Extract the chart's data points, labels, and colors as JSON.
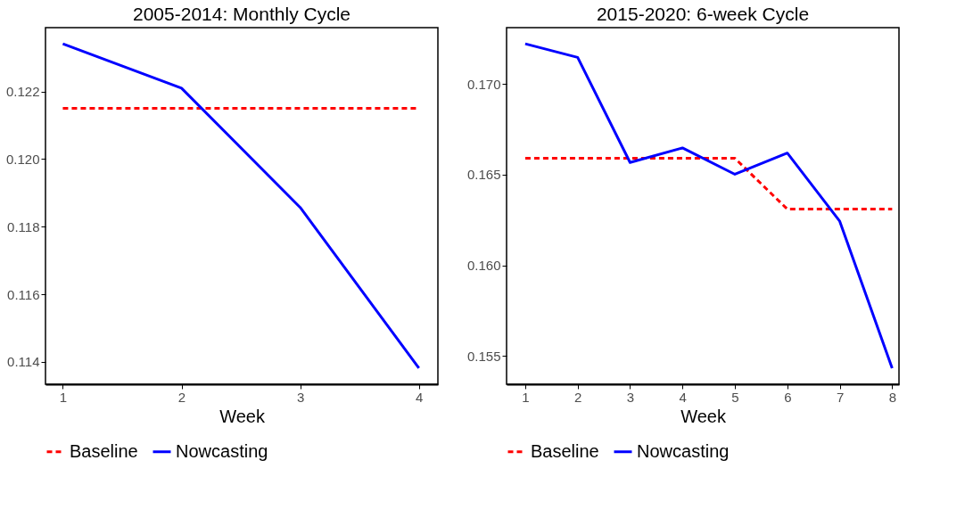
{
  "chart_data": [
    {
      "type": "line",
      "title": "2005-2014: Monthly Cycle",
      "xlabel": "Week",
      "x": [
        1,
        2,
        3,
        4
      ],
      "xlim": [
        0.854,
        4.16
      ],
      "xticks": [
        1,
        2,
        3,
        4
      ],
      "ylim": [
        0.11334,
        0.12389
      ],
      "yticks": [
        0.114,
        0.116,
        0.118,
        {
          "value": 0.12,
          "label": "0.120"
        },
        0.122
      ],
      "grid": false,
      "legend": "bottom",
      "marker": "none",
      "series": [
        {
          "name": "Baseline",
          "color": "#ff0000",
          "line_style": "dashed",
          "values": [
            0.1215,
            0.1215,
            0.1215,
            0.1215
          ]
        },
        {
          "name": "Nowcasting",
          "color": "#0000ff",
          "line_style": "solid",
          "values": [
            0.12341,
            0.1221,
            0.11857,
            0.11382
          ]
        }
      ]
    },
    {
      "type": "line",
      "title": "2015-2020: 6-week Cycle",
      "xlabel": "Week",
      "x": [
        1,
        2,
        3,
        4,
        5,
        6,
        7,
        8
      ],
      "xlim": [
        0.644,
        8.13
      ],
      "xticks": [
        1,
        2,
        3,
        4,
        5,
        6,
        7,
        8
      ],
      "ylim": [
        0.15345,
        0.1731
      ],
      "yticks": [
        0.155,
        {
          "value": 0.16,
          "label": "0.160"
        },
        0.165,
        {
          "value": 0.17,
          "label": "0.170"
        }
      ],
      "grid": false,
      "legend": "bottom",
      "marker": "none",
      "series": [
        {
          "name": "Baseline",
          "color": "#ff0000",
          "line_style": "dashed",
          "values": [
            0.1659,
            0.1659,
            0.1659,
            0.1659,
            0.1659,
            0.1631,
            0.1631,
            0.1631
          ]
        },
        {
          "name": "Nowcasting",
          "color": "#0000ff",
          "line_style": "solid",
          "values": [
            0.17221,
            0.17146,
            0.16567,
            0.16647,
            0.16502,
            0.16619,
            0.16243,
            0.15434
          ]
        }
      ]
    }
  ]
}
